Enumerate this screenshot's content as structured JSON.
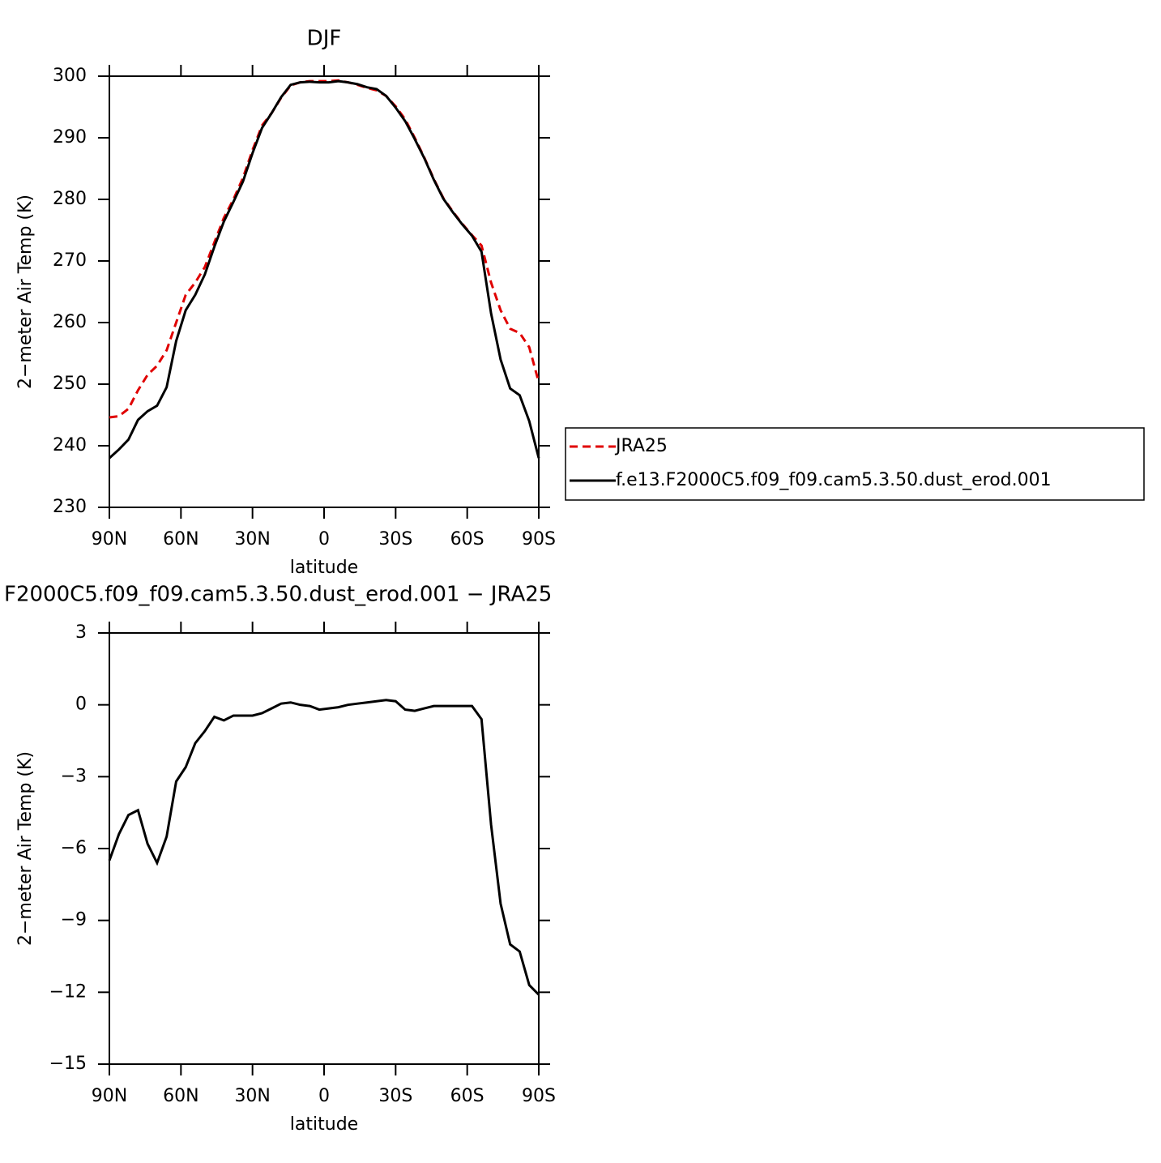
{
  "chart_data": [
    {
      "type": "line",
      "title": "DJF",
      "xlabel": "latitude",
      "ylabel": "2−meter Air Temp (K)",
      "x": [
        90,
        86,
        82,
        78,
        74,
        70,
        66,
        62,
        58,
        54,
        50,
        46,
        42,
        38,
        34,
        30,
        26,
        22,
        18,
        14,
        10,
        6,
        2,
        -2,
        -6,
        -10,
        -14,
        -18,
        -22,
        -26,
        -30,
        -34,
        -38,
        -42,
        -46,
        -50,
        -54,
        -58,
        -62,
        -66,
        -70,
        -74,
        -78,
        -82,
        -86,
        -90
      ],
      "xlim": [
        90,
        -90
      ],
      "xticks": [
        {
          "value": 90,
          "label": "90N"
        },
        {
          "value": 60,
          "label": "60N"
        },
        {
          "value": 30,
          "label": "30N"
        },
        0,
        {
          "value": -30,
          "label": "30S"
        },
        {
          "value": -60,
          "label": "60S"
        },
        {
          "value": -90,
          "label": "90S"
        }
      ],
      "ylim": [
        230,
        300
      ],
      "yticks": [
        230,
        240,
        250,
        260,
        270,
        280,
        290,
        300
      ],
      "legend": "right",
      "series": [
        {
          "name": "JRA25",
          "color": "#e00000",
          "dash": true,
          "values": [
            244.6,
            244.8,
            246,
            249,
            251.5,
            253,
            255.5,
            260,
            264.5,
            266.5,
            269,
            273,
            277,
            280,
            283.5,
            288,
            292,
            294,
            296.5,
            298.5,
            299,
            299.2,
            299.2,
            299.2,
            299.3,
            299,
            298.6,
            298.1,
            297.7,
            296.8,
            295.1,
            293,
            290,
            286.8,
            283.3,
            280.2,
            278,
            276,
            274.2,
            272.5,
            266.5,
            262,
            259,
            258.3,
            256,
            250.3
          ]
        },
        {
          "name": "f.e13.F2000C5.f09_f09.cam5.3.50.dust_erod.001",
          "color": "#000000",
          "dash": false,
          "values": [
            238,
            239.4,
            241,
            244.2,
            245.6,
            246.5,
            249.5,
            257,
            262,
            264.5,
            267.8,
            272.3,
            276.4,
            279.6,
            282.9,
            287.5,
            291.6,
            294,
            296.6,
            298.6,
            299,
            299.1,
            299,
            299,
            299.2,
            299,
            298.7,
            298.2,
            297.9,
            296.8,
            294.9,
            292.7,
            289.8,
            286.7,
            283.2,
            280.1,
            277.9,
            275.9,
            274.1,
            271.5,
            261.5,
            254,
            249.3,
            248.2,
            244,
            238
          ]
        }
      ]
    },
    {
      "type": "line",
      "title": "F2000C5.f09_f09.cam5.3.50.dust_erod.001 − JRA25",
      "xlabel": "latitude",
      "ylabel": "2−meter Air Temp (K)",
      "x": [
        90,
        86,
        82,
        78,
        74,
        70,
        66,
        62,
        58,
        54,
        50,
        46,
        42,
        38,
        34,
        30,
        26,
        22,
        18,
        14,
        10,
        6,
        2,
        -2,
        -6,
        -10,
        -14,
        -18,
        -22,
        -26,
        -30,
        -34,
        -38,
        -42,
        -46,
        -50,
        -54,
        -58,
        -62,
        -66,
        -70,
        -74,
        -78,
        -82,
        -86,
        -90
      ],
      "xlim": [
        90,
        -90
      ],
      "xticks": [
        {
          "value": 90,
          "label": "90N"
        },
        {
          "value": 60,
          "label": "60N"
        },
        {
          "value": 30,
          "label": "30N"
        },
        0,
        {
          "value": -30,
          "label": "30S"
        },
        {
          "value": -60,
          "label": "60S"
        },
        {
          "value": -90,
          "label": "90S"
        }
      ],
      "ylim": [
        -15,
        3
      ],
      "yticks": [
        {
          "value": -15,
          "label": "−15"
        },
        {
          "value": -12,
          "label": "−12"
        },
        {
          "value": -9,
          "label": "−9"
        },
        {
          "value": -6,
          "label": "−6"
        },
        {
          "value": -3,
          "label": "−3"
        },
        0,
        3
      ],
      "series": [
        {
          "color": "#000000",
          "dash": false,
          "values": [
            -6.5,
            -5.4,
            -4.6,
            -4.4,
            -5.8,
            -6.6,
            -5.5,
            -3.2,
            -2.6,
            -1.6,
            -1.1,
            -0.5,
            -0.65,
            -0.45,
            -0.45,
            -0.45,
            -0.35,
            -0.15,
            0.05,
            0.1,
            0,
            -0.05,
            -0.2,
            -0.15,
            -0.1,
            0,
            0.05,
            0.1,
            0.15,
            0.2,
            0.15,
            -0.2,
            -0.25,
            -0.15,
            -0.05,
            -0.05,
            -0.05,
            -0.05,
            -0.05,
            -0.6,
            -5,
            -8.3,
            -10,
            -10.3,
            -11.7,
            -12.1
          ]
        }
      ]
    }
  ]
}
